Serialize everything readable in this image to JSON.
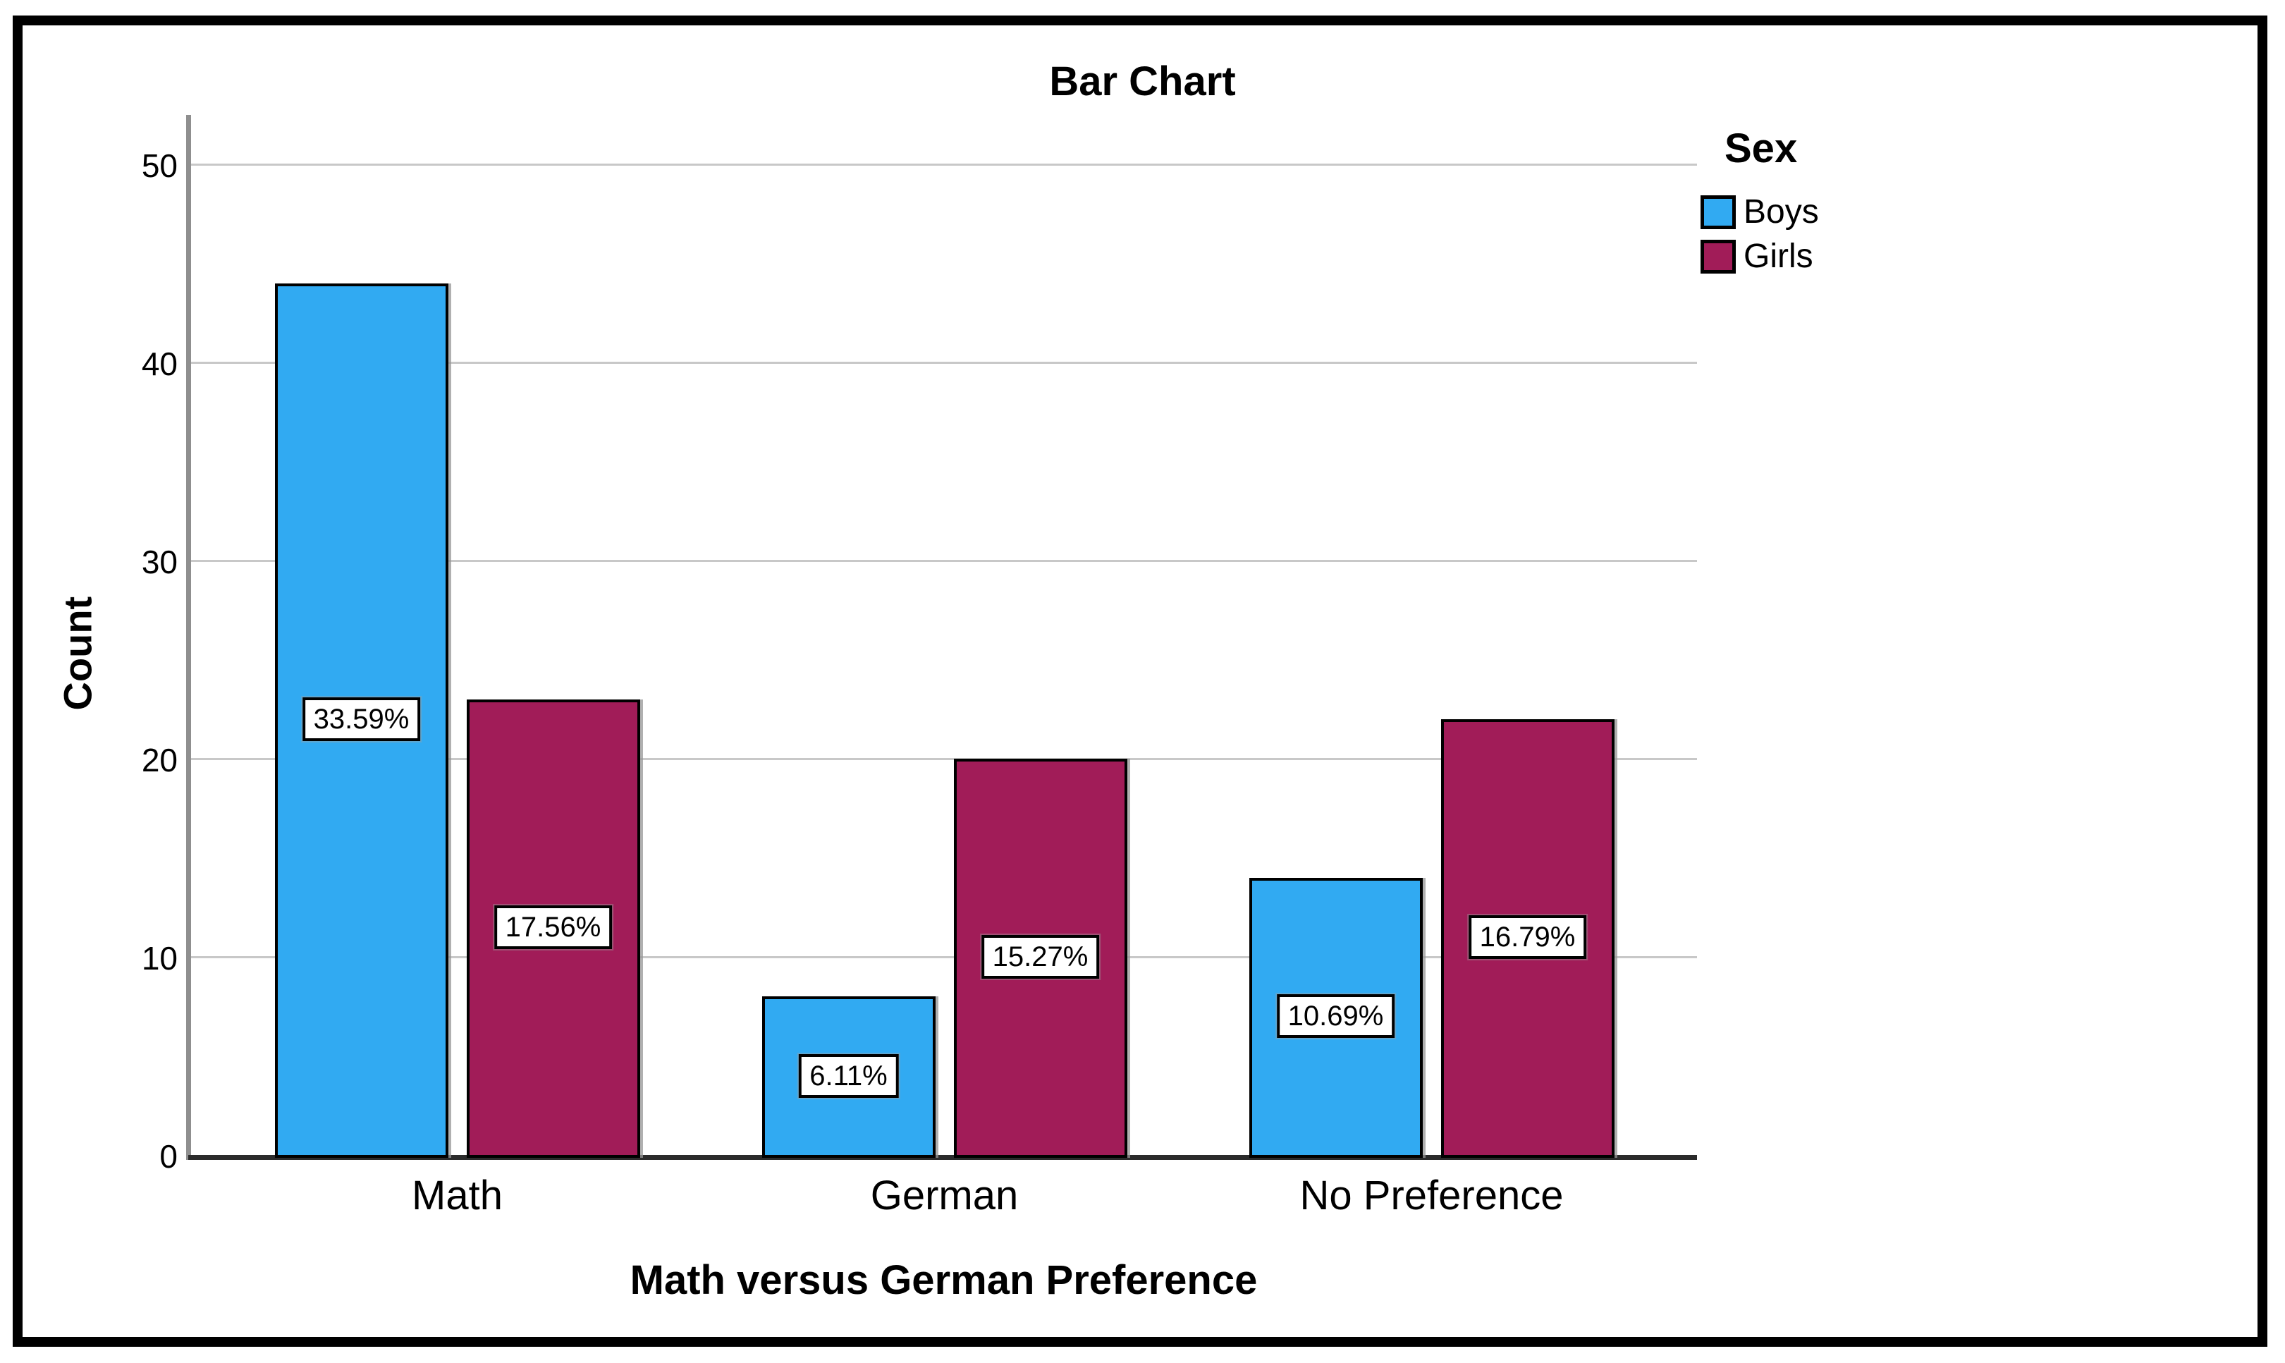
{
  "chart": {
    "title": "Bar Chart",
    "x_axis_title": "Math versus German Preference",
    "y_axis_title": "Count",
    "legend_title": "Sex"
  },
  "chart_data": {
    "type": "bar",
    "title": "Bar Chart",
    "xlabel": "Math versus German Preference",
    "ylabel": "Count",
    "legend_title": "Sex",
    "legend_position": "top-right",
    "grid": "horizontal-gridlines",
    "ylim": [
      0,
      52
    ],
    "y_ticks": [
      0,
      10,
      20,
      30,
      40,
      50
    ],
    "categories": [
      "Math",
      "German",
      "No Preference"
    ],
    "series": [
      {
        "name": "Boys",
        "color": "#31AAF2",
        "values": [
          44,
          8,
          14
        ],
        "bar_labels": [
          "33.59%",
          "6.11%",
          "10.69%"
        ]
      },
      {
        "name": "Girls",
        "color": "#A11C58",
        "values": [
          23,
          20,
          22
        ],
        "bar_labels": [
          "17.56%",
          "15.27%",
          "16.79%"
        ]
      }
    ]
  },
  "colors": {
    "bar_border": "#000000",
    "gridline": "#c8c8c8",
    "y_axis_line": "#8f8f8f",
    "x_axis_line": "#2b2b2b",
    "frame_border": "#000000",
    "label_box_bg": "#ffffff",
    "label_box_border": "#000000"
  }
}
